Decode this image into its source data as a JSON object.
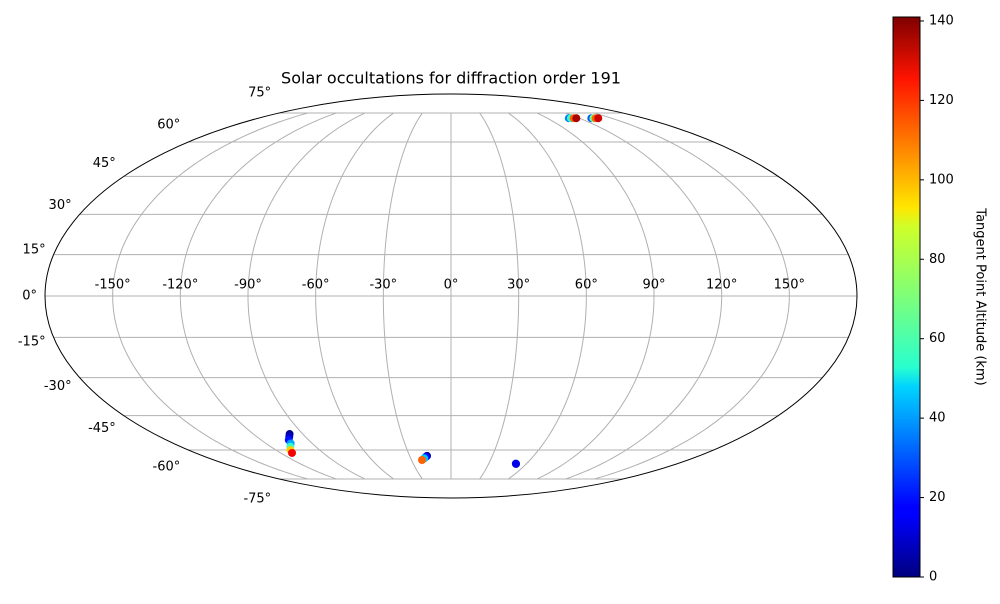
{
  "chart_data": {
    "type": "scatter",
    "projection": "mollweide",
    "title": "Solar occultations for diffraction order 191",
    "xlim": [
      -180,
      180
    ],
    "ylim": [
      -90,
      90
    ],
    "xticks": [
      {
        "value": -150,
        "label": "-150°"
      },
      {
        "value": -120,
        "label": "-120°"
      },
      {
        "value": -90,
        "label": "-90°"
      },
      {
        "value": -60,
        "label": "-60°"
      },
      {
        "value": -30,
        "label": "-30°"
      },
      {
        "value": 0,
        "label": "0°"
      },
      {
        "value": 30,
        "label": "30°"
      },
      {
        "value": 60,
        "label": "60°"
      },
      {
        "value": 90,
        "label": "90°"
      },
      {
        "value": 120,
        "label": "120°"
      },
      {
        "value": 150,
        "label": "150°"
      }
    ],
    "yticks": [
      {
        "value": -75,
        "label": "-75°"
      },
      {
        "value": -60,
        "label": "-60°"
      },
      {
        "value": -45,
        "label": "-45°"
      },
      {
        "value": -30,
        "label": "-30°"
      },
      {
        "value": -15,
        "label": "-15°"
      },
      {
        "value": 0,
        "label": "0°"
      },
      {
        "value": 15,
        "label": "15°"
      },
      {
        "value": 30,
        "label": "30°"
      },
      {
        "value": 45,
        "label": "45°"
      },
      {
        "value": 60,
        "label": "60°"
      },
      {
        "value": 75,
        "label": "75°"
      }
    ],
    "grid": true,
    "colormap": "jet",
    "colorbar": {
      "label": "Tangent Point Altitude (km)",
      "lim": [
        0,
        141
      ],
      "ticks": [
        0,
        20,
        40,
        60,
        80,
        100,
        120,
        140
      ]
    },
    "x": [
      -98,
      -100,
      -102.5,
      -104,
      -107,
      -110,
      -112,
      -17.4,
      -18.5,
      -20,
      -22,
      51.9,
      51.5,
      110,
      112,
      114.5,
      117,
      131,
      133,
      135,
      137.5
    ],
    "y": [
      -52.8,
      -54,
      -55.4,
      -57,
      -58.5,
      -60,
      -61.4,
      -62.8,
      -63.3,
      -64,
      -64.8,
      -66.8,
      -66.6,
      72,
      72,
      72,
      72,
      72,
      72,
      72,
      72
    ],
    "c": [
      3,
      10,
      20,
      40,
      60,
      95,
      125,
      5,
      20,
      45,
      110,
      5,
      15,
      35,
      60,
      110,
      135,
      30,
      70,
      110,
      130
    ]
  }
}
